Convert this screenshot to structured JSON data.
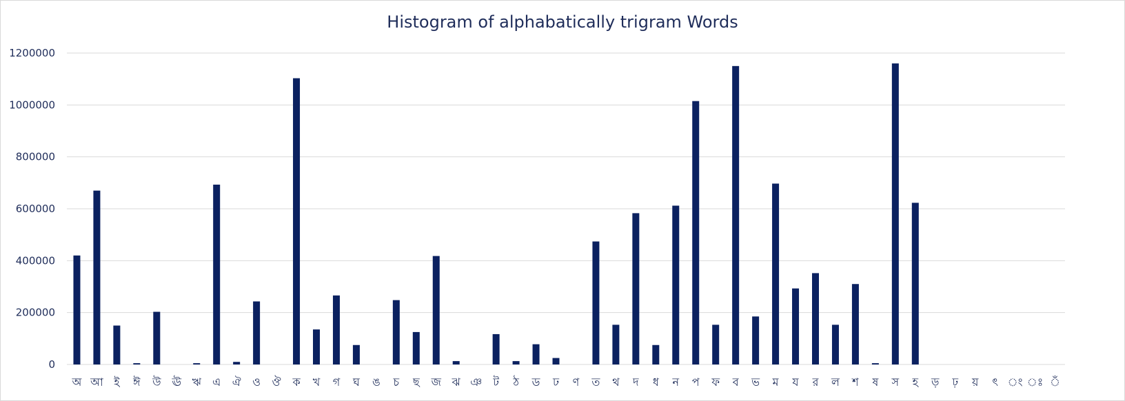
{
  "chart_data": {
    "type": "bar",
    "title": "Histogram of alphabatically trigram Words",
    "xlabel": "",
    "ylabel": "",
    "ylim": [
      0,
      1200000
    ],
    "yticks": [
      0,
      200000,
      400000,
      600000,
      800000,
      1000000,
      1200000
    ],
    "grid": true,
    "legend": "none",
    "bar_color": "#0b2160",
    "categories": [
      "অ",
      "আ",
      "ই",
      "ঈ",
      "উ",
      "ঊ",
      "ঋ",
      "এ",
      "ঐ",
      "ও",
      "ঔ",
      "ক",
      "খ",
      "গ",
      "ঘ",
      "ঙ",
      "চ",
      "ছ",
      "জ",
      "ঝ",
      "ঞ",
      "ট",
      "ঠ",
      "ড",
      "ঢ",
      "ণ",
      "ত",
      "থ",
      "দ",
      "ধ",
      "ন",
      "প",
      "ফ",
      "ব",
      "ভ",
      "ম",
      "য",
      "র",
      "ল",
      "শ",
      "ষ",
      "স",
      "হ",
      "ড়",
      "ঢ়",
      "য়",
      "ৎ",
      "ং",
      "ঃ",
      "ঁ"
    ],
    "values": [
      420000,
      670000,
      150000,
      5000,
      203000,
      0,
      5000,
      693000,
      10000,
      243000,
      0,
      1103000,
      135000,
      266000,
      75000,
      0,
      248000,
      125000,
      418000,
      13000,
      0,
      117000,
      13000,
      78000,
      25000,
      0,
      474000,
      153000,
      583000,
      75000,
      612000,
      1015000,
      153000,
      1150000,
      185000,
      697000,
      293000,
      352000,
      153000,
      310000,
      5000,
      1160000,
      623000,
      0,
      0,
      0,
      0,
      0,
      0,
      0
    ]
  }
}
